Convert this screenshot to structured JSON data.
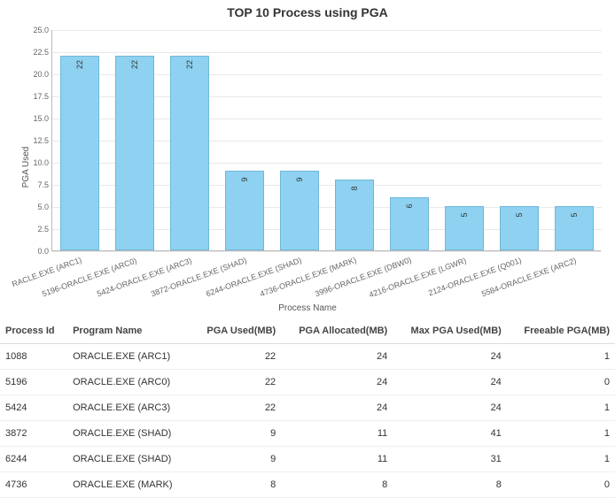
{
  "chart": {
    "type": "bar",
    "title": "TOP 10 Process using PGA",
    "ylabel": "PGA Used",
    "xlabel": "Process Name",
    "ylim": [
      0,
      25
    ],
    "ytick_step": 2.5,
    "yticks": [
      "0.0",
      "2.5",
      "5.0",
      "7.5",
      "10.0",
      "12.5",
      "15.0",
      "17.5",
      "20.0",
      "22.5",
      "25.0"
    ],
    "bar_color": "#8ed1f0",
    "bar_border_color": "#6fb8d8",
    "background_color": "#ffffff",
    "grid_color": "#e9e9e9",
    "bar_width_ratio": 0.7,
    "title_fontsize": 14,
    "label_fontsize": 10,
    "tick_fontsize": 9,
    "series": [
      {
        "label": "RACLE.EXE (ARC1)",
        "value": 22
      },
      {
        "label": "5196-ORACLE.EXE (ARC0)",
        "value": 22
      },
      {
        "label": "5424-ORACLE.EXE (ARC3)",
        "value": 22
      },
      {
        "label": "3872-ORACLE.EXE (SHAD)",
        "value": 9
      },
      {
        "label": "6244-ORACLE.EXE (SHAD)",
        "value": 9
      },
      {
        "label": "4736-ORACLE.EXE (MARK)",
        "value": 8
      },
      {
        "label": "3996-ORACLE.EXE (DBW0)",
        "value": 6
      },
      {
        "label": "4216-ORACLE.EXE (LGWR)",
        "value": 5
      },
      {
        "label": "2124-ORACLE.EXE (Q001)",
        "value": 5
      },
      {
        "label": "5584-ORACLE.EXE (ARC2)",
        "value": 5
      }
    ]
  },
  "table": {
    "columns": [
      {
        "label": "Process Id",
        "align": "left"
      },
      {
        "label": "Program Name",
        "align": "left"
      },
      {
        "label": "PGA Used(MB)",
        "align": "right"
      },
      {
        "label": "PGA Allocated(MB)",
        "align": "right"
      },
      {
        "label": "Max PGA Used(MB)",
        "align": "right"
      },
      {
        "label": "Freeable PGA(MB)",
        "align": "right"
      }
    ],
    "rows": [
      [
        "1088",
        "ORACLE.EXE (ARC1)",
        "22",
        "24",
        "24",
        "1"
      ],
      [
        "5196",
        "ORACLE.EXE (ARC0)",
        "22",
        "24",
        "24",
        "0"
      ],
      [
        "5424",
        "ORACLE.EXE (ARC3)",
        "22",
        "24",
        "24",
        "1"
      ],
      [
        "3872",
        "ORACLE.EXE (SHAD)",
        "9",
        "11",
        "41",
        "1"
      ],
      [
        "6244",
        "ORACLE.EXE (SHAD)",
        "9",
        "11",
        "31",
        "1"
      ],
      [
        "4736",
        "ORACLE.EXE (MARK)",
        "8",
        "8",
        "8",
        "0"
      ]
    ],
    "row_border_color": "#eeeeee",
    "header_border_color": "#dddddd",
    "font_size": 11
  }
}
